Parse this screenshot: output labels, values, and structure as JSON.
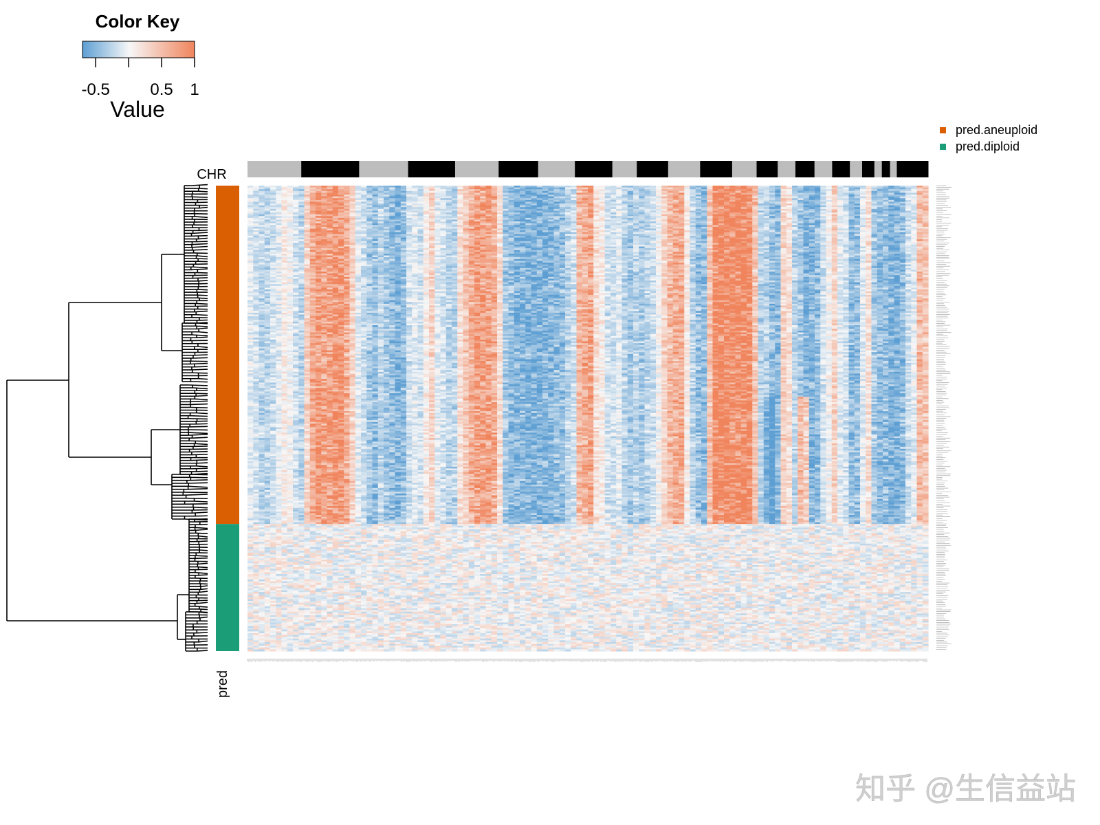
{
  "chart_data": {
    "type": "heatmap",
    "color_key": {
      "title": "Color Key",
      "xlabel": "Value",
      "range": [
        -0.7,
        1.0
      ],
      "ticks": [
        -0.5,
        0,
        0.5,
        1
      ],
      "tick_labels": [
        "-0.5",
        "",
        "0.5",
        "1"
      ],
      "colors": [
        "#5e9fd3",
        "#f7f7f7",
        "#f0845c"
      ]
    },
    "chr_label": "CHR",
    "chromosome_bar": {
      "colors": [
        "#bdbdbd",
        "#000000"
      ],
      "segment_starts": [
        0,
        0.079,
        0.164,
        0.236,
        0.305,
        0.369,
        0.427,
        0.481,
        0.536,
        0.572,
        0.618,
        0.665,
        0.712,
        0.748,
        0.779,
        0.805,
        0.833,
        0.859,
        0.885,
        0.903,
        0.921,
        0.932,
        0.944,
        0.954
      ],
      "segment_ends": [
        0.079,
        0.164,
        0.236,
        0.305,
        0.369,
        0.427,
        0.481,
        0.536,
        0.572,
        0.618,
        0.665,
        0.712,
        0.748,
        0.779,
        0.805,
        0.833,
        0.859,
        0.885,
        0.903,
        0.921,
        0.932,
        0.944,
        0.954,
        1.0
      ]
    },
    "row_annotation": {
      "label": "pred",
      "groups": [
        {
          "name": "pred.aneuploid",
          "fraction": 0.727,
          "color": "#d95f02"
        },
        {
          "name": "pred.diploid",
          "fraction": 0.273,
          "color": "#1b9e77"
        }
      ]
    },
    "legend": [
      {
        "label": "pred.aneuploid",
        "color": "#d95f02"
      },
      {
        "label": "pred.diploid",
        "color": "#1b9e77"
      }
    ],
    "column_profile": {
      "cols": 120,
      "aneuploid_mean": [
        -0.1,
        -0.2,
        -0.3,
        -0.3,
        -0.2,
        -0.1,
        0.1,
        0.0,
        -0.2,
        -0.3,
        0.3,
        0.6,
        0.8,
        0.7,
        0.7,
        0.8,
        0.8,
        0.6,
        0.3,
        -0.1,
        -0.2,
        -0.4,
        -0.5,
        -0.3,
        -0.4,
        -0.5,
        -0.6,
        -0.5,
        -0.2,
        -0.1,
        -0.2,
        0.1,
        0.3,
        -0.1,
        -0.2,
        -0.3,
        -0.3,
        0.2,
        0.4,
        0.6,
        0.7,
        0.7,
        0.7,
        0.6,
        0.2,
        -0.4,
        -0.5,
        -0.6,
        -0.6,
        -0.6,
        -0.6,
        -0.6,
        -0.6,
        -0.6,
        -0.5,
        -0.5,
        -0.3,
        -0.2,
        0.5,
        0.6,
        0.7,
        0.2,
        0.1,
        -0.2,
        -0.2,
        -0.1,
        -0.3,
        -0.4,
        -0.3,
        -0.4,
        -0.3,
        -0.2,
        0.0,
        0.3,
        0.5,
        0.6,
        0.6,
        0.1,
        -0.3,
        -0.5,
        -0.5,
        0.4,
        0.9,
        0.9,
        0.9,
        0.9,
        0.9,
        0.9,
        0.9,
        0.4,
        -0.3,
        -0.3,
        -0.5,
        -0.5,
        0.3,
        0.2,
        -0.3,
        -0.4,
        -0.6,
        -0.6,
        -0.5,
        -0.2,
        0.0,
        0.3,
        -0.1,
        -0.2,
        -0.5,
        -0.5,
        -0.1,
        0.2,
        -0.4,
        -0.5,
        -0.5,
        -0.6,
        -0.6,
        -0.5,
        -0.2,
        -0.1,
        0.5,
        0.4
      ]
    }
  },
  "watermark": {
    "text": "知乎 @生信益站"
  }
}
